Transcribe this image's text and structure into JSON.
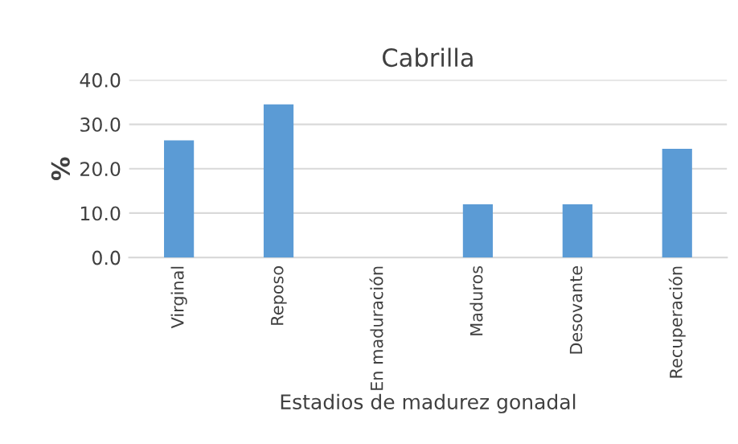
{
  "chart_data": {
    "type": "bar",
    "title": "Cabrilla",
    "xlabel": "Estadios de madurez gonadal",
    "ylabel": "%",
    "categories": [
      "Virginal",
      "Reposo",
      "En maduración",
      "Maduros",
      "Desovante",
      "Recuperación"
    ],
    "values": [
      26.4,
      34.5,
      0,
      12.0,
      12.0,
      24.5
    ],
    "color": "#5b9bd5",
    "ylim": [
      0,
      40
    ],
    "yticks": [
      {
        "value": 0,
        "label": "0.0"
      },
      {
        "value": 10,
        "label": "10.0"
      },
      {
        "value": 20,
        "label": "20.0"
      },
      {
        "value": 30,
        "label": "30.0"
      },
      {
        "value": 40,
        "label": "40.0"
      }
    ],
    "grid": "y"
  }
}
